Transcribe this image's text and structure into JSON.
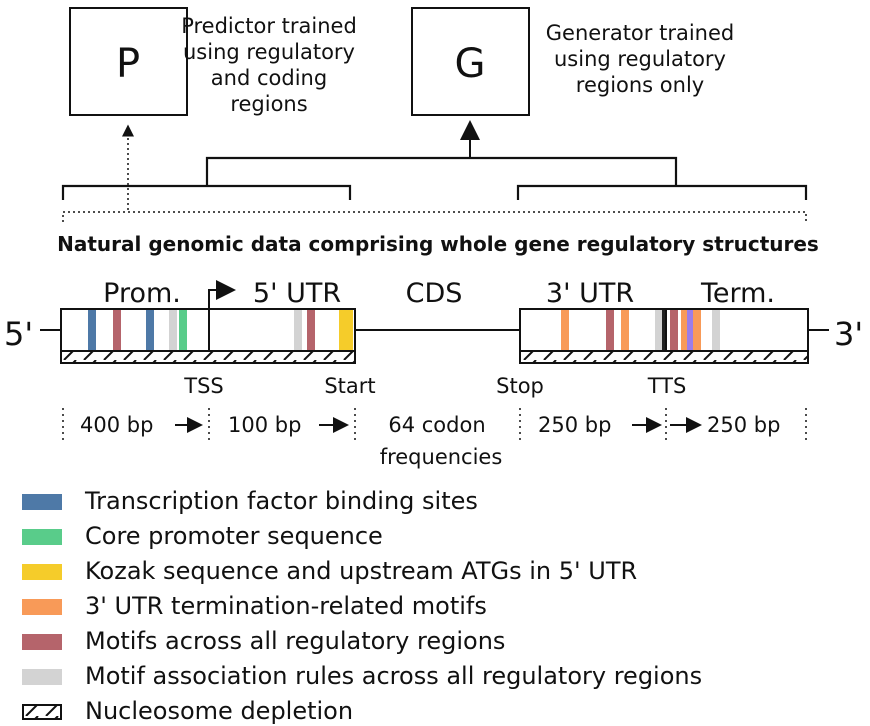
{
  "boxes": {
    "predictor_letter": "P",
    "generator_letter": "G",
    "predictor_caption": [
      "Predictor trained",
      "using regulatory",
      "and coding",
      "regions"
    ],
    "generator_caption": [
      "Generator trained",
      "using regulatory",
      "regions only"
    ]
  },
  "data_title": "Natural genomic data comprising whole gene regulatory structures",
  "gene": {
    "five_prime": "5'",
    "three_prime": "3'",
    "region_labels": [
      "Prom.",
      "5' UTR",
      "CDS",
      "3' UTR",
      "Term."
    ],
    "site_labels": [
      "TSS",
      "Start",
      "Stop",
      "TTS"
    ]
  },
  "sizes": {
    "prom": "400 bp",
    "utr5": "100 bp",
    "cds": [
      "64 codon",
      "frequencies"
    ],
    "utr3": "250 bp",
    "term": "250 bp"
  },
  "colors": {
    "tfbs": "#4e79a7",
    "core": "#59cc8a",
    "kozak": "#f5cc2a",
    "utr3": "#f89a58",
    "motif": "#b5646b",
    "rules": "#d3d3d3",
    "purple": "#9b7de8",
    "black": "#222222"
  },
  "legend": [
    {
      "label": "Transcription factor binding sites",
      "color": "#4e79a7",
      "icon": "blue-swatch"
    },
    {
      "label": "Core promoter sequence",
      "color": "#59cc8a",
      "icon": "green-swatch"
    },
    {
      "label": "Kozak sequence and upstream ATGs in 5' UTR",
      "color": "#f5cc2a",
      "icon": "yellow-swatch"
    },
    {
      "label": "3' UTR termination-related motifs",
      "color": "#f89a58",
      "icon": "orange-swatch"
    },
    {
      "label": "Motifs across all regulatory regions",
      "color": "#b5646b",
      "icon": "red-swatch"
    },
    {
      "label": "Motif association rules across all regulatory regions",
      "color": "#d3d3d3",
      "icon": "grey-swatch"
    },
    {
      "label": "Nucleosome depletion",
      "color": "#ffffff",
      "icon": "hatched-swatch"
    }
  ]
}
